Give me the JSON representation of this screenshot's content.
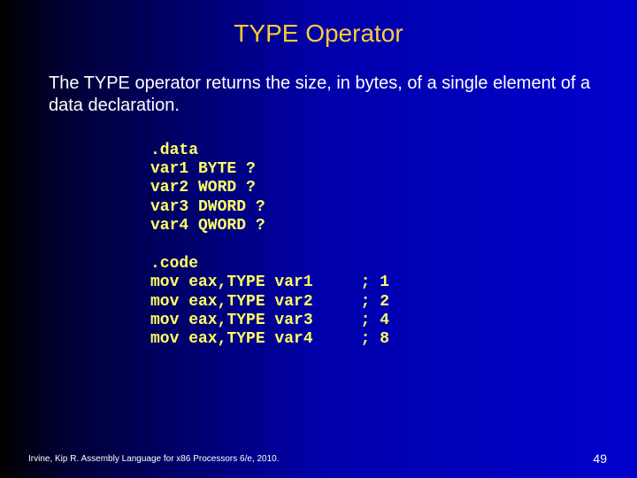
{
  "title": "TYPE Operator",
  "body": "The TYPE operator returns the size, in bytes, of a single element of a data declaration.",
  "data_section": {
    "directive": ".data",
    "lines": [
      "var1 BYTE ?",
      "var2 WORD ?",
      "var3 DWORD ?",
      "var4 QWORD ?"
    ]
  },
  "code_section": {
    "directive": ".code",
    "rows": [
      {
        "inst": "mov eax,TYPE var1",
        "comment": "; 1"
      },
      {
        "inst": "mov eax,TYPE var2",
        "comment": "; 2"
      },
      {
        "inst": "mov eax,TYPE var3",
        "comment": "; 4"
      },
      {
        "inst": "mov eax,TYPE var4",
        "comment": "; 8"
      }
    ]
  },
  "footer": "Irvine, Kip R. Assembly Language for x86 Processors 6/e, 2010.",
  "page_number": "49",
  "colors": {
    "title": "#ffcc33",
    "body": "#ffffff",
    "code": "#ffff66",
    "bg_left": "#000000",
    "bg_right": "#0000cc"
  },
  "layout": {
    "inst_width_ch": 22
  }
}
